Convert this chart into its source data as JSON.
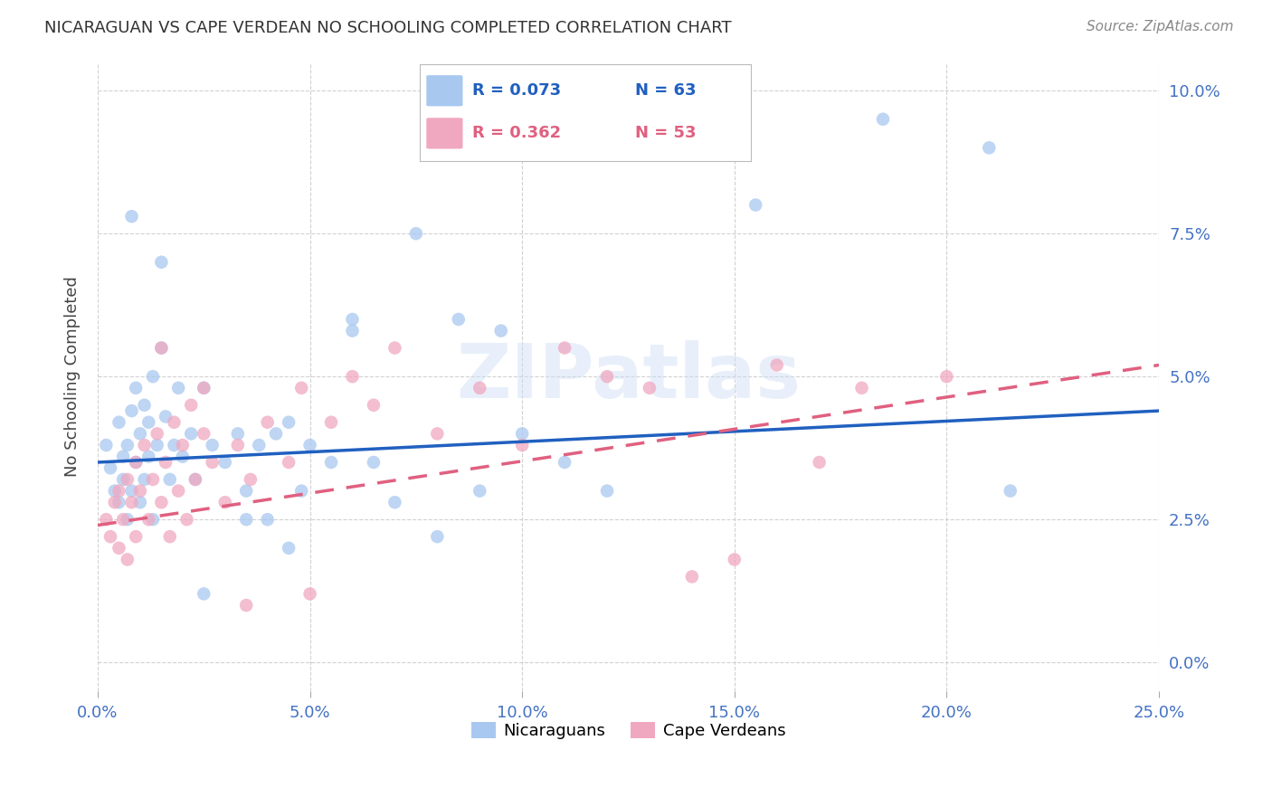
{
  "title": "NICARAGUAN VS CAPE VERDEAN NO SCHOOLING COMPLETED CORRELATION CHART",
  "source": "Source: ZipAtlas.com",
  "ylabel": "No Schooling Completed",
  "xlim": [
    0.0,
    0.25
  ],
  "ylim": [
    -0.005,
    0.105
  ],
  "xticks": [
    0.0,
    0.05,
    0.1,
    0.15,
    0.2,
    0.25
  ],
  "yticks": [
    0.0,
    0.025,
    0.05,
    0.075,
    0.1
  ],
  "xticklabels": [
    "0.0%",
    "5.0%",
    "10.0%",
    "15.0%",
    "20.0%",
    "25.0%"
  ],
  "yticklabels_right": [
    "0.0%",
    "2.5%",
    "5.0%",
    "7.5%",
    "10.0%"
  ],
  "blue_color": "#a8c8f0",
  "pink_color": "#f0a8c0",
  "blue_line_color": "#2060c0",
  "pink_line_color": "#e06080",
  "axis_color": "#4472c4",
  "grid_color": "#cccccc",
  "watermark": "ZIPatlas",
  "title_color": "#333333",
  "source_color": "#888888",
  "legend_R1": "R = 0.073",
  "legend_N1": "N = 63",
  "legend_R2": "R = 0.362",
  "legend_N2": "N = 53",
  "blue_line_y0": 0.035,
  "blue_line_y1": 0.044,
  "pink_line_y0": 0.024,
  "pink_line_y1": 0.052,
  "blue_scatter_x": [
    0.002,
    0.003,
    0.004,
    0.005,
    0.005,
    0.006,
    0.006,
    0.007,
    0.007,
    0.008,
    0.008,
    0.009,
    0.009,
    0.01,
    0.01,
    0.011,
    0.011,
    0.012,
    0.012,
    0.013,
    0.013,
    0.014,
    0.015,
    0.016,
    0.017,
    0.018,
    0.019,
    0.02,
    0.022,
    0.023,
    0.025,
    0.027,
    0.03,
    0.033,
    0.035,
    0.038,
    0.04,
    0.042,
    0.045,
    0.048,
    0.05,
    0.055,
    0.06,
    0.065,
    0.07,
    0.08,
    0.09,
    0.095,
    0.1,
    0.11,
    0.12,
    0.155,
    0.185,
    0.21,
    0.215,
    0.06,
    0.075,
    0.085,
    0.045,
    0.035,
    0.025,
    0.015,
    0.008
  ],
  "blue_scatter_y": [
    0.038,
    0.034,
    0.03,
    0.042,
    0.028,
    0.036,
    0.032,
    0.038,
    0.025,
    0.044,
    0.03,
    0.048,
    0.035,
    0.04,
    0.028,
    0.045,
    0.032,
    0.042,
    0.036,
    0.05,
    0.025,
    0.038,
    0.055,
    0.043,
    0.032,
    0.038,
    0.048,
    0.036,
    0.04,
    0.032,
    0.048,
    0.038,
    0.035,
    0.04,
    0.03,
    0.038,
    0.025,
    0.04,
    0.042,
    0.03,
    0.038,
    0.035,
    0.06,
    0.035,
    0.028,
    0.022,
    0.03,
    0.058,
    0.04,
    0.035,
    0.03,
    0.08,
    0.095,
    0.09,
    0.03,
    0.058,
    0.075,
    0.06,
    0.02,
    0.025,
    0.012,
    0.07,
    0.078
  ],
  "pink_scatter_x": [
    0.002,
    0.003,
    0.004,
    0.005,
    0.005,
    0.006,
    0.007,
    0.007,
    0.008,
    0.009,
    0.009,
    0.01,
    0.011,
    0.012,
    0.013,
    0.014,
    0.015,
    0.016,
    0.017,
    0.018,
    0.019,
    0.02,
    0.021,
    0.022,
    0.023,
    0.025,
    0.027,
    0.03,
    0.033,
    0.036,
    0.04,
    0.045,
    0.048,
    0.055,
    0.06,
    0.065,
    0.07,
    0.08,
    0.09,
    0.1,
    0.11,
    0.12,
    0.13,
    0.14,
    0.15,
    0.16,
    0.17,
    0.18,
    0.2,
    0.015,
    0.025,
    0.035,
    0.05
  ],
  "pink_scatter_y": [
    0.025,
    0.022,
    0.028,
    0.02,
    0.03,
    0.025,
    0.032,
    0.018,
    0.028,
    0.035,
    0.022,
    0.03,
    0.038,
    0.025,
    0.032,
    0.04,
    0.028,
    0.035,
    0.022,
    0.042,
    0.03,
    0.038,
    0.025,
    0.045,
    0.032,
    0.04,
    0.035,
    0.028,
    0.038,
    0.032,
    0.042,
    0.035,
    0.048,
    0.042,
    0.05,
    0.045,
    0.055,
    0.04,
    0.048,
    0.038,
    0.055,
    0.05,
    0.048,
    0.015,
    0.018,
    0.052,
    0.035,
    0.048,
    0.05,
    0.055,
    0.048,
    0.01,
    0.012
  ]
}
